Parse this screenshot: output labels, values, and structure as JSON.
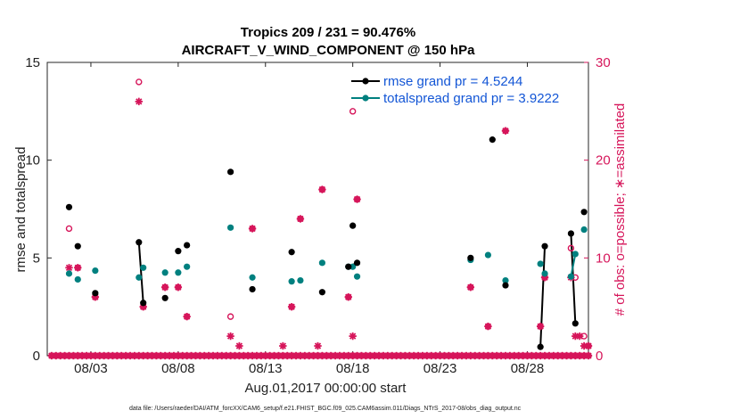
{
  "chart_data": {
    "type": "scatter",
    "title": "Tropics 209 / 231 = 90.476%",
    "subtitle": "AIRCRAFT_V_WIND_COMPONENT @ 150 hPa",
    "xlabel": "Aug.01,2017 00:00:00 start",
    "ylabel": "rmse and totalspread",
    "ylabel_right": "# of obs: o=possible; ∗=assimilated",
    "xlim": [
      0.5,
      31.5
    ],
    "ylim": [
      0,
      15
    ],
    "ylim_right": [
      0,
      30
    ],
    "xticks": [
      3,
      8,
      13,
      18,
      23,
      28
    ],
    "xtick_labels": [
      "08/03",
      "08/08",
      "08/13",
      "08/18",
      "08/23",
      "08/28"
    ],
    "yticks": [
      0,
      5,
      10,
      15
    ],
    "ytick_labels": [
      "0",
      "5",
      "10",
      "15"
    ],
    "yticks_right": [
      0,
      10,
      20,
      30
    ],
    "ytick_labels_right": [
      "0",
      "10",
      "20",
      "30"
    ],
    "legend_position": "top-right",
    "colors": {
      "rmse": "#000000",
      "spread": "#00807f",
      "obs": "#d6155a",
      "legend_text": "#1356d6"
    },
    "series": [
      {
        "name": "rmse grand pr = 4.5244",
        "marker": "filled-circle",
        "points": [
          [
            1.75,
            7.6
          ],
          [
            2.25,
            5.6
          ],
          [
            3.25,
            3.2
          ],
          [
            5.75,
            5.8
          ],
          [
            6.0,
            2.7
          ],
          [
            7.25,
            2.95
          ],
          [
            8.0,
            5.35
          ],
          [
            8.5,
            5.65
          ],
          [
            11.0,
            9.4
          ],
          [
            12.25,
            3.4
          ],
          [
            14.5,
            5.3
          ],
          [
            16.25,
            3.25
          ],
          [
            17.75,
            4.55
          ],
          [
            18.0,
            6.65
          ],
          [
            18.25,
            4.75
          ],
          [
            24.75,
            5.0
          ],
          [
            26.0,
            11.05
          ],
          [
            26.75,
            3.6
          ],
          [
            28.75,
            0.45
          ],
          [
            29.0,
            5.6
          ],
          [
            30.5,
            6.25
          ],
          [
            30.75,
            1.65
          ],
          [
            31.25,
            7.35
          ]
        ],
        "segments": [
          [
            5.75,
            6.0
          ],
          [
            17.75,
            18.25
          ],
          [
            28.75,
            29.0
          ],
          [
            30.5,
            30.75
          ]
        ]
      },
      {
        "name": "totalspread grand pr = 3.9222",
        "marker": "filled-circle",
        "points": [
          [
            1.75,
            4.2
          ],
          [
            2.25,
            3.9
          ],
          [
            3.25,
            4.35
          ],
          [
            5.75,
            4.0
          ],
          [
            6.0,
            4.5
          ],
          [
            7.25,
            4.25
          ],
          [
            8.0,
            4.25
          ],
          [
            8.5,
            4.55
          ],
          [
            11.0,
            6.55
          ],
          [
            12.25,
            4.0
          ],
          [
            14.5,
            3.8
          ],
          [
            15.0,
            3.85
          ],
          [
            16.25,
            4.75
          ],
          [
            17.75,
            4.55
          ],
          [
            18.0,
            4.55
          ],
          [
            18.25,
            4.05
          ],
          [
            24.75,
            4.9
          ],
          [
            25.75,
            5.15
          ],
          [
            26.75,
            3.85
          ],
          [
            28.75,
            4.7
          ],
          [
            29.0,
            4.2
          ],
          [
            30.5,
            4.05
          ],
          [
            30.75,
            5.2
          ],
          [
            31.25,
            6.45
          ]
        ],
        "segments": [
          [
            30.5,
            30.75
          ]
        ]
      },
      {
        "name": "possible obs count",
        "axis": "right",
        "marker": "open-circle",
        "points": [
          [
            1.75,
            13
          ],
          [
            2.25,
            9
          ],
          [
            3.25,
            6
          ],
          [
            5.75,
            28
          ],
          [
            6.0,
            5
          ],
          [
            7.25,
            7
          ],
          [
            8.0,
            7
          ],
          [
            8.5,
            4
          ],
          [
            11.0,
            4
          ],
          [
            12.25,
            13
          ],
          [
            14.5,
            5
          ],
          [
            15.0,
            14
          ],
          [
            16.25,
            17
          ],
          [
            17.75,
            6
          ],
          [
            18.0,
            25
          ],
          [
            18.25,
            16
          ],
          [
            24.75,
            7
          ],
          [
            25.75,
            3
          ],
          [
            26.75,
            23
          ],
          [
            28.75,
            3
          ],
          [
            29.0,
            8
          ],
          [
            30.5,
            11
          ],
          [
            30.75,
            8
          ],
          [
            31.25,
            2
          ],
          [
            31.5,
            1
          ]
        ]
      },
      {
        "name": "assimilated obs count",
        "axis": "right",
        "marker": "asterisk",
        "points": [
          [
            1.75,
            9
          ],
          [
            2.25,
            9
          ],
          [
            3.25,
            6
          ],
          [
            5.75,
            26
          ],
          [
            6.0,
            5
          ],
          [
            7.25,
            7
          ],
          [
            8.0,
            7
          ],
          [
            8.5,
            4
          ],
          [
            11.0,
            2
          ],
          [
            11.5,
            1
          ],
          [
            12.25,
            13
          ],
          [
            14.0,
            1
          ],
          [
            14.5,
            5
          ],
          [
            15.0,
            14
          ],
          [
            16.0,
            1
          ],
          [
            16.25,
            17
          ],
          [
            17.75,
            6
          ],
          [
            18.0,
            2
          ],
          [
            18.25,
            16
          ],
          [
            24.75,
            7
          ],
          [
            25.75,
            3
          ],
          [
            26.75,
            23
          ],
          [
            28.75,
            3
          ],
          [
            29.0,
            8
          ],
          [
            30.5,
            8
          ],
          [
            30.75,
            2
          ],
          [
            31.0,
            2
          ],
          [
            31.25,
            1
          ],
          [
            31.5,
            1
          ]
        ]
      },
      {
        "name": "zero obs",
        "axis": "right",
        "marker": "asterisk-on-circle",
        "x_start": 0.75,
        "x_end": 31.5,
        "x_step": 0.25,
        "value": 0
      }
    ]
  },
  "footer": "data file: /Users/raeder/DAI/ATM_forcXX/CAM6_setup/f.e21.FHIST_BGC.f09_025.CAM6assim.011/Diags_NTrS_2017-08/obs_diag_output.nc"
}
